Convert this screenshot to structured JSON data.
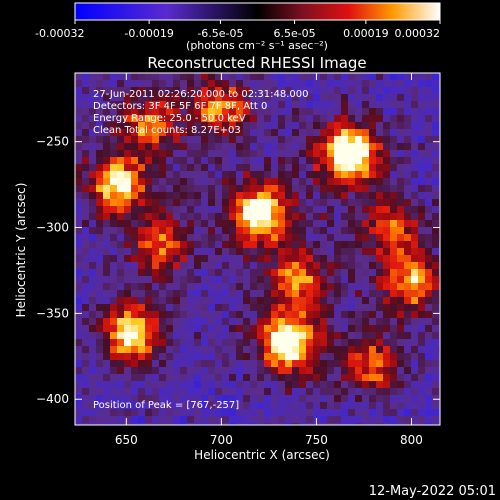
{
  "colorbar": {
    "ticks": [
      "-0.00032",
      "-0.00019",
      "-6.5e-05",
      "6.5e-05",
      "0.00019",
      "0.00032"
    ],
    "range": [
      -0.00032,
      0.00032
    ],
    "unit_label": "(photons cm⁻² s⁻¹ asec⁻²)"
  },
  "chart_data": {
    "type": "heatmap",
    "title": "Reconstructed RHESSI Image",
    "xlabel": "Heliocentric X (arcsec)",
    "ylabel": "Heliocentric Y (arcsec)",
    "xlim": [
      623,
      815
    ],
    "ylim": [
      -415,
      -210
    ],
    "xticks": [
      650,
      700,
      750,
      800
    ],
    "yticks": [
      -250,
      -300,
      -350,
      -400
    ],
    "xtick_labels": [
      "650",
      "700",
      "750",
      "800"
    ],
    "ytick_labels": [
      "−250",
      "−300",
      "−350",
      "−400"
    ],
    "peak": [
      767,
      -257
    ],
    "sources": [
      {
        "x": 767,
        "y": -257,
        "amp": 1.0
      },
      {
        "x": 735,
        "y": -367,
        "amp": 0.95
      },
      {
        "x": 720,
        "y": -292,
        "amp": 0.9
      },
      {
        "x": 653,
        "y": -362,
        "amp": 0.8
      },
      {
        "x": 645,
        "y": -275,
        "amp": 0.75
      },
      {
        "x": 800,
        "y": -332,
        "amp": 0.65
      },
      {
        "x": 740,
        "y": -330,
        "amp": 0.55
      },
      {
        "x": 700,
        "y": -230,
        "amp": 0.6
      },
      {
        "x": 780,
        "y": -380,
        "amp": 0.5
      },
      {
        "x": 790,
        "y": -300,
        "amp": 0.45
      },
      {
        "x": 662,
        "y": -240,
        "amp": 0.55
      },
      {
        "x": 668,
        "y": -310,
        "amp": 0.5
      }
    ],
    "annotations": [
      "27-Jun-2011 02:26:20.000 to 02:31:48.000",
      "Detectors: 3F 4F 5F 6F 7F 8F, Att 0",
      "Energy Range: 25.0 - 50.0 keV",
      "Clean     Total counts: 8.27E+03"
    ],
    "peak_label": "Position of Peak = [767,-257]"
  },
  "footer": {
    "timestamp": "12-May-2022 05:01"
  }
}
